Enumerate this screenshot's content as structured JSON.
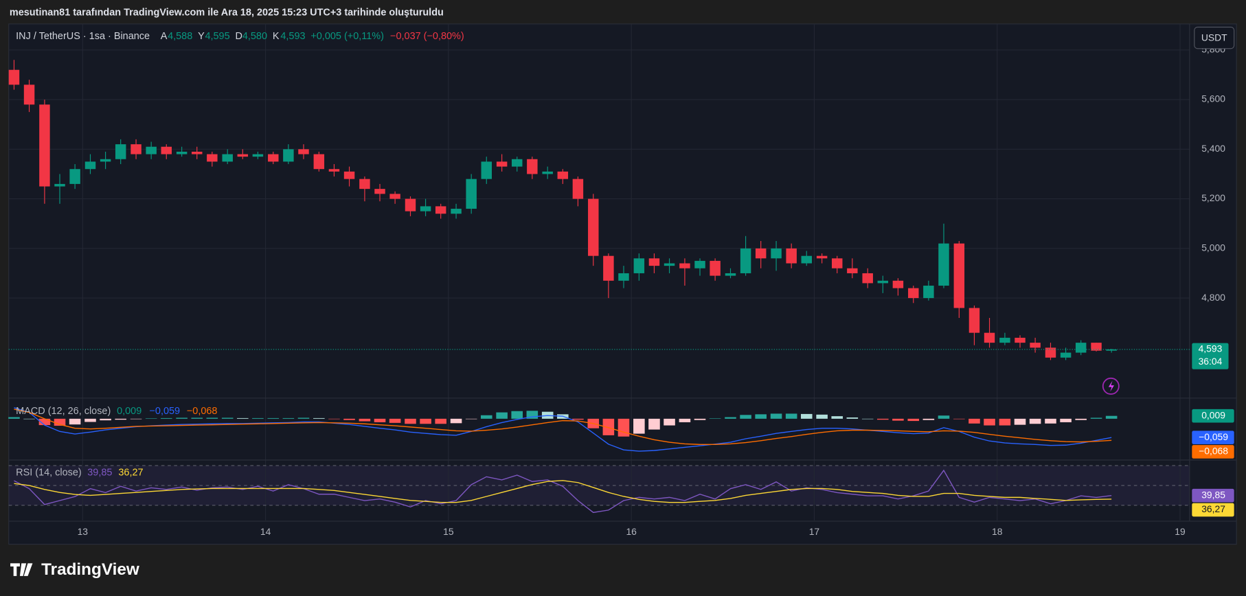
{
  "header": {
    "credit": "mesutinan81 tarafından TradingView.com ile Ara 18, 2025 15:23 UTC+3 tarihinde oluşturuldu",
    "symbol": "INJ / TetherUS · 1sa · Binance",
    "ohlc": [
      {
        "key": "A",
        "value": "4,588"
      },
      {
        "key": "Y",
        "value": "4,595"
      },
      {
        "key": "D",
        "value": "4,580"
      },
      {
        "key": "K",
        "value": "4,593"
      }
    ],
    "change": "+0,005 (+0,11%)",
    "change_day": "−0,037 (−0,80%)",
    "currency": "USDT"
  },
  "footer": {
    "brand": "TradingView"
  },
  "chart_data": {
    "type": "candlestick",
    "x": [
      12.625,
      12.708,
      12.792,
      12.875,
      12.958,
      13.042,
      13.125,
      13.208,
      13.292,
      13.375,
      13.458,
      13.542,
      13.625,
      13.708,
      13.792,
      13.875,
      13.958,
      14.042,
      14.125,
      14.208,
      14.292,
      14.375,
      14.458,
      14.542,
      14.625,
      14.708,
      14.792,
      14.875,
      14.958,
      15.042,
      15.125,
      15.208,
      15.292,
      15.375,
      15.458,
      15.542,
      15.625,
      15.708,
      15.792,
      15.875,
      15.958,
      16.042,
      16.125,
      16.208,
      16.292,
      16.375,
      16.458,
      16.542,
      16.625,
      16.708,
      16.792,
      16.875,
      16.958,
      17.042,
      17.125,
      17.208,
      17.292,
      17.375,
      17.458,
      17.542,
      17.625,
      17.708,
      17.792,
      17.875,
      17.958,
      18.042,
      18.125,
      18.208,
      18.292,
      18.375,
      18.458,
      18.542,
      18.625
    ],
    "open": [
      5.72,
      5.66,
      5.58,
      5.25,
      5.26,
      5.32,
      5.35,
      5.36,
      5.42,
      5.38,
      5.41,
      5.38,
      5.39,
      5.38,
      5.35,
      5.38,
      5.37,
      5.38,
      5.35,
      5.4,
      5.38,
      5.32,
      5.31,
      5.28,
      5.24,
      5.22,
      5.2,
      5.15,
      5.17,
      5.14,
      5.16,
      5.28,
      5.35,
      5.33,
      5.36,
      5.3,
      5.31,
      5.28,
      5.2,
      4.97,
      4.87,
      4.9,
      4.96,
      4.93,
      4.94,
      4.92,
      4.95,
      4.89,
      4.9,
      5.0,
      4.96,
      5.0,
      4.94,
      4.97,
      4.96,
      4.92,
      4.9,
      4.86,
      4.87,
      4.84,
      4.8,
      4.85,
      5.02,
      4.76,
      4.66,
      4.62,
      4.64,
      4.62,
      4.6,
      4.56,
      4.58,
      4.62,
      4.588
    ],
    "high": [
      5.76,
      5.68,
      5.6,
      5.3,
      5.34,
      5.38,
      5.39,
      5.44,
      5.44,
      5.43,
      5.42,
      5.41,
      5.41,
      5.39,
      5.4,
      5.4,
      5.39,
      5.39,
      5.42,
      5.42,
      5.39,
      5.34,
      5.33,
      5.29,
      5.26,
      5.23,
      5.21,
      5.2,
      5.18,
      5.18,
      5.3,
      5.37,
      5.38,
      5.37,
      5.37,
      5.33,
      5.32,
      5.29,
      5.22,
      4.98,
      4.93,
      4.98,
      4.98,
      4.96,
      4.96,
      4.96,
      4.96,
      4.92,
      5.05,
      5.03,
      5.03,
      5.02,
      4.99,
      4.98,
      4.97,
      4.96,
      4.92,
      4.89,
      4.88,
      4.85,
      4.87,
      5.1,
      5.03,
      4.77,
      4.72,
      4.66,
      4.65,
      4.64,
      4.62,
      4.6,
      4.63,
      4.62,
      4.595
    ],
    "low": [
      5.64,
      5.55,
      5.18,
      5.18,
      5.24,
      5.3,
      5.32,
      5.34,
      5.36,
      5.36,
      5.36,
      5.37,
      5.36,
      5.33,
      5.34,
      5.36,
      5.36,
      5.34,
      5.34,
      5.36,
      5.31,
      5.29,
      5.25,
      5.19,
      5.19,
      5.18,
      5.13,
      5.13,
      5.12,
      5.12,
      5.14,
      5.26,
      5.31,
      5.31,
      5.28,
      5.28,
      5.26,
      5.17,
      4.93,
      4.8,
      4.84,
      4.87,
      4.9,
      4.9,
      4.85,
      4.89,
      4.87,
      4.88,
      4.89,
      4.92,
      4.91,
      4.92,
      4.93,
      4.94,
      4.9,
      4.88,
      4.84,
      4.82,
      4.81,
      4.78,
      4.79,
      4.84,
      4.72,
      4.61,
      4.6,
      4.61,
      4.6,
      4.58,
      4.55,
      4.55,
      4.57,
      4.585,
      4.58
    ],
    "close": [
      5.66,
      5.58,
      5.25,
      5.26,
      5.32,
      5.35,
      5.36,
      5.42,
      5.38,
      5.41,
      5.38,
      5.39,
      5.38,
      5.35,
      5.38,
      5.37,
      5.38,
      5.35,
      5.4,
      5.38,
      5.32,
      5.31,
      5.28,
      5.24,
      5.22,
      5.2,
      5.15,
      5.17,
      5.14,
      5.16,
      5.28,
      5.35,
      5.33,
      5.36,
      5.3,
      5.31,
      5.28,
      5.2,
      4.97,
      4.87,
      4.9,
      4.96,
      4.93,
      4.94,
      4.92,
      4.95,
      4.89,
      4.9,
      5.0,
      4.96,
      5.0,
      4.94,
      4.97,
      4.96,
      4.92,
      4.9,
      4.86,
      4.87,
      4.84,
      4.8,
      4.85,
      5.02,
      4.76,
      4.66,
      4.62,
      4.64,
      4.62,
      4.6,
      4.56,
      4.58,
      4.62,
      4.588,
      4.593
    ],
    "colors": {
      "up": "#089981",
      "down": "#f23645"
    },
    "xlim": [
      12.596,
      19.052
    ],
    "xticks": [
      13,
      14,
      15,
      16,
      17,
      18,
      19
    ],
    "ylim": [
      4.4,
      5.905
    ],
    "yticks": [
      {
        "value": 4.8,
        "label": "4,800"
      },
      {
        "value": 5.0,
        "label": "5,000"
      },
      {
        "value": 5.2,
        "label": "5,200"
      },
      {
        "value": 5.4,
        "label": "5,400"
      },
      {
        "value": 5.6,
        "label": "5,600"
      },
      {
        "value": 5.8,
        "label": "5,800"
      }
    ],
    "grid": true,
    "last_price": {
      "value": 4.593,
      "label": "4,593"
    },
    "countdown": "36:04",
    "indicators": [
      {
        "type": "macd",
        "title": "MACD (12, 26, close)",
        "ylim": [
          -0.1275,
          0.0625
        ],
        "histogram": {
          "last_label": "0,009",
          "color": "#089981",
          "colors": {
            "up_rising": "#26a69a",
            "up_falling": "#b2dfdb",
            "down_falling": "#ff5252",
            "down_rising": "#ffcdd2"
          },
          "values": [
            0.005,
            0,
            -0.02,
            -0.022,
            -0.018,
            -0.01,
            -0.005,
            -0.003,
            -0.001,
            0.001,
            0.002,
            0.003,
            0.003,
            0.003,
            0.003,
            0.002,
            0.002,
            0.002,
            0.002,
            0.003,
            0.002,
            -0.001,
            -0.004,
            -0.008,
            -0.011,
            -0.013,
            -0.016,
            -0.016,
            -0.016,
            -0.014,
            -0.001,
            0.011,
            0.02,
            0.024,
            0.025,
            0.022,
            0.014,
            -0.003,
            -0.03,
            -0.052,
            -0.056,
            -0.047,
            -0.034,
            -0.021,
            -0.011,
            -0.004,
            0.001,
            0.005,
            0.012,
            0.014,
            0.016,
            0.016,
            0.015,
            0.013,
            0.008,
            0.004,
            0,
            -0.003,
            -0.006,
            -0.007,
            -0.004,
            0.01,
            -0.001,
            -0.015,
            -0.021,
            -0.021,
            -0.019,
            -0.016,
            -0.015,
            -0.011,
            -0.004,
            0.003,
            0.009
          ]
        },
        "macd": {
          "last_label": "−0,059",
          "color": "#2962ff",
          "values": [
            0.035,
            0.02,
            -0.02,
            -0.04,
            -0.048,
            -0.042,
            -0.035,
            -0.03,
            -0.025,
            -0.022,
            -0.02,
            -0.018,
            -0.017,
            -0.016,
            -0.015,
            -0.015,
            -0.014,
            -0.013,
            -0.012,
            -0.01,
            -0.01,
            -0.014,
            -0.018,
            -0.024,
            -0.03,
            -0.035,
            -0.042,
            -0.046,
            -0.05,
            -0.052,
            -0.04,
            -0.025,
            -0.012,
            -0.002,
            0.006,
            0.01,
            0.008,
            -0.01,
            -0.045,
            -0.08,
            -0.098,
            -0.102,
            -0.1,
            -0.095,
            -0.09,
            -0.085,
            -0.08,
            -0.074,
            -0.063,
            -0.055,
            -0.046,
            -0.04,
            -0.034,
            -0.03,
            -0.03,
            -0.032,
            -0.036,
            -0.04,
            -0.044,
            -0.047,
            -0.045,
            -0.028,
            -0.04,
            -0.058,
            -0.07,
            -0.076,
            -0.079,
            -0.081,
            -0.084,
            -0.083,
            -0.077,
            -0.068,
            -0.059
          ]
        },
        "signal": {
          "last_label": "−0,068",
          "color": "#ff6d00",
          "values": [
            0.03,
            0.02,
            0,
            -0.018,
            -0.03,
            -0.032,
            -0.03,
            -0.027,
            -0.024,
            -0.023,
            -0.022,
            -0.021,
            -0.02,
            -0.019,
            -0.018,
            -0.017,
            -0.016,
            -0.015,
            -0.014,
            -0.013,
            -0.012,
            -0.013,
            -0.014,
            -0.016,
            -0.019,
            -0.022,
            -0.026,
            -0.03,
            -0.034,
            -0.038,
            -0.039,
            -0.036,
            -0.032,
            -0.026,
            -0.019,
            -0.012,
            -0.006,
            -0.007,
            -0.015,
            -0.028,
            -0.042,
            -0.055,
            -0.066,
            -0.074,
            -0.079,
            -0.081,
            -0.081,
            -0.079,
            -0.075,
            -0.069,
            -0.062,
            -0.056,
            -0.049,
            -0.043,
            -0.038,
            -0.036,
            -0.036,
            -0.037,
            -0.038,
            -0.04,
            -0.041,
            -0.038,
            -0.039,
            -0.043,
            -0.049,
            -0.055,
            -0.06,
            -0.065,
            -0.069,
            -0.072,
            -0.073,
            -0.071,
            -0.068
          ]
        }
      },
      {
        "type": "rsi",
        "title": "RSI (14, close)",
        "ylim": [
          14.8,
          74.8
        ],
        "levels": [
          70,
          50,
          30
        ],
        "band_color": "#7e57c2",
        "rsi": {
          "last_label": "39,85",
          "color": "#7e57c2",
          "values": [
            54.8,
            46.8,
            30.8,
            34.8,
            38.8,
            46.8,
            42.8,
            49.2,
            44.4,
            47.6,
            46,
            48.4,
            45.2,
            47.6,
            48.4,
            46,
            49.2,
            44.4,
            50.8,
            46.8,
            41.2,
            41.2,
            38,
            34.8,
            36.4,
            33.2,
            28.4,
            34.8,
            31.6,
            34.8,
            50.8,
            58.8,
            55.6,
            60.4,
            54,
            55.6,
            49.2,
            34.8,
            22.8,
            25.2,
            34.8,
            38,
            36.4,
            38,
            34.8,
            41.2,
            36.4,
            46.8,
            50.8,
            46,
            53.6,
            44.4,
            47.6,
            46,
            42.8,
            41.2,
            39.6,
            39.6,
            36.4,
            39.6,
            44.4,
            65.2,
            38,
            33.2,
            38,
            36.4,
            34.8,
            36.4,
            31.6,
            34.8,
            39.6,
            38,
            39.85
          ]
        },
        "ma": {
          "last_label": "36,27",
          "color": "#fdd835",
          "values": [
            52,
            50,
            46,
            43,
            41,
            40,
            41,
            42,
            43,
            44,
            45,
            46,
            46.5,
            47,
            47,
            47,
            47,
            47,
            47,
            47,
            46,
            45,
            43,
            41,
            39,
            37,
            35,
            34,
            33,
            33,
            35,
            39,
            43,
            47,
            51,
            54,
            55,
            53,
            48,
            43,
            39,
            36,
            34,
            33,
            33,
            34,
            35,
            37,
            40,
            42,
            44,
            46,
            47,
            47,
            46,
            44,
            43,
            42,
            40,
            39,
            39,
            42,
            42,
            40,
            39,
            38,
            38,
            37,
            36,
            35,
            35.5,
            36,
            36.27
          ]
        }
      }
    ]
  }
}
